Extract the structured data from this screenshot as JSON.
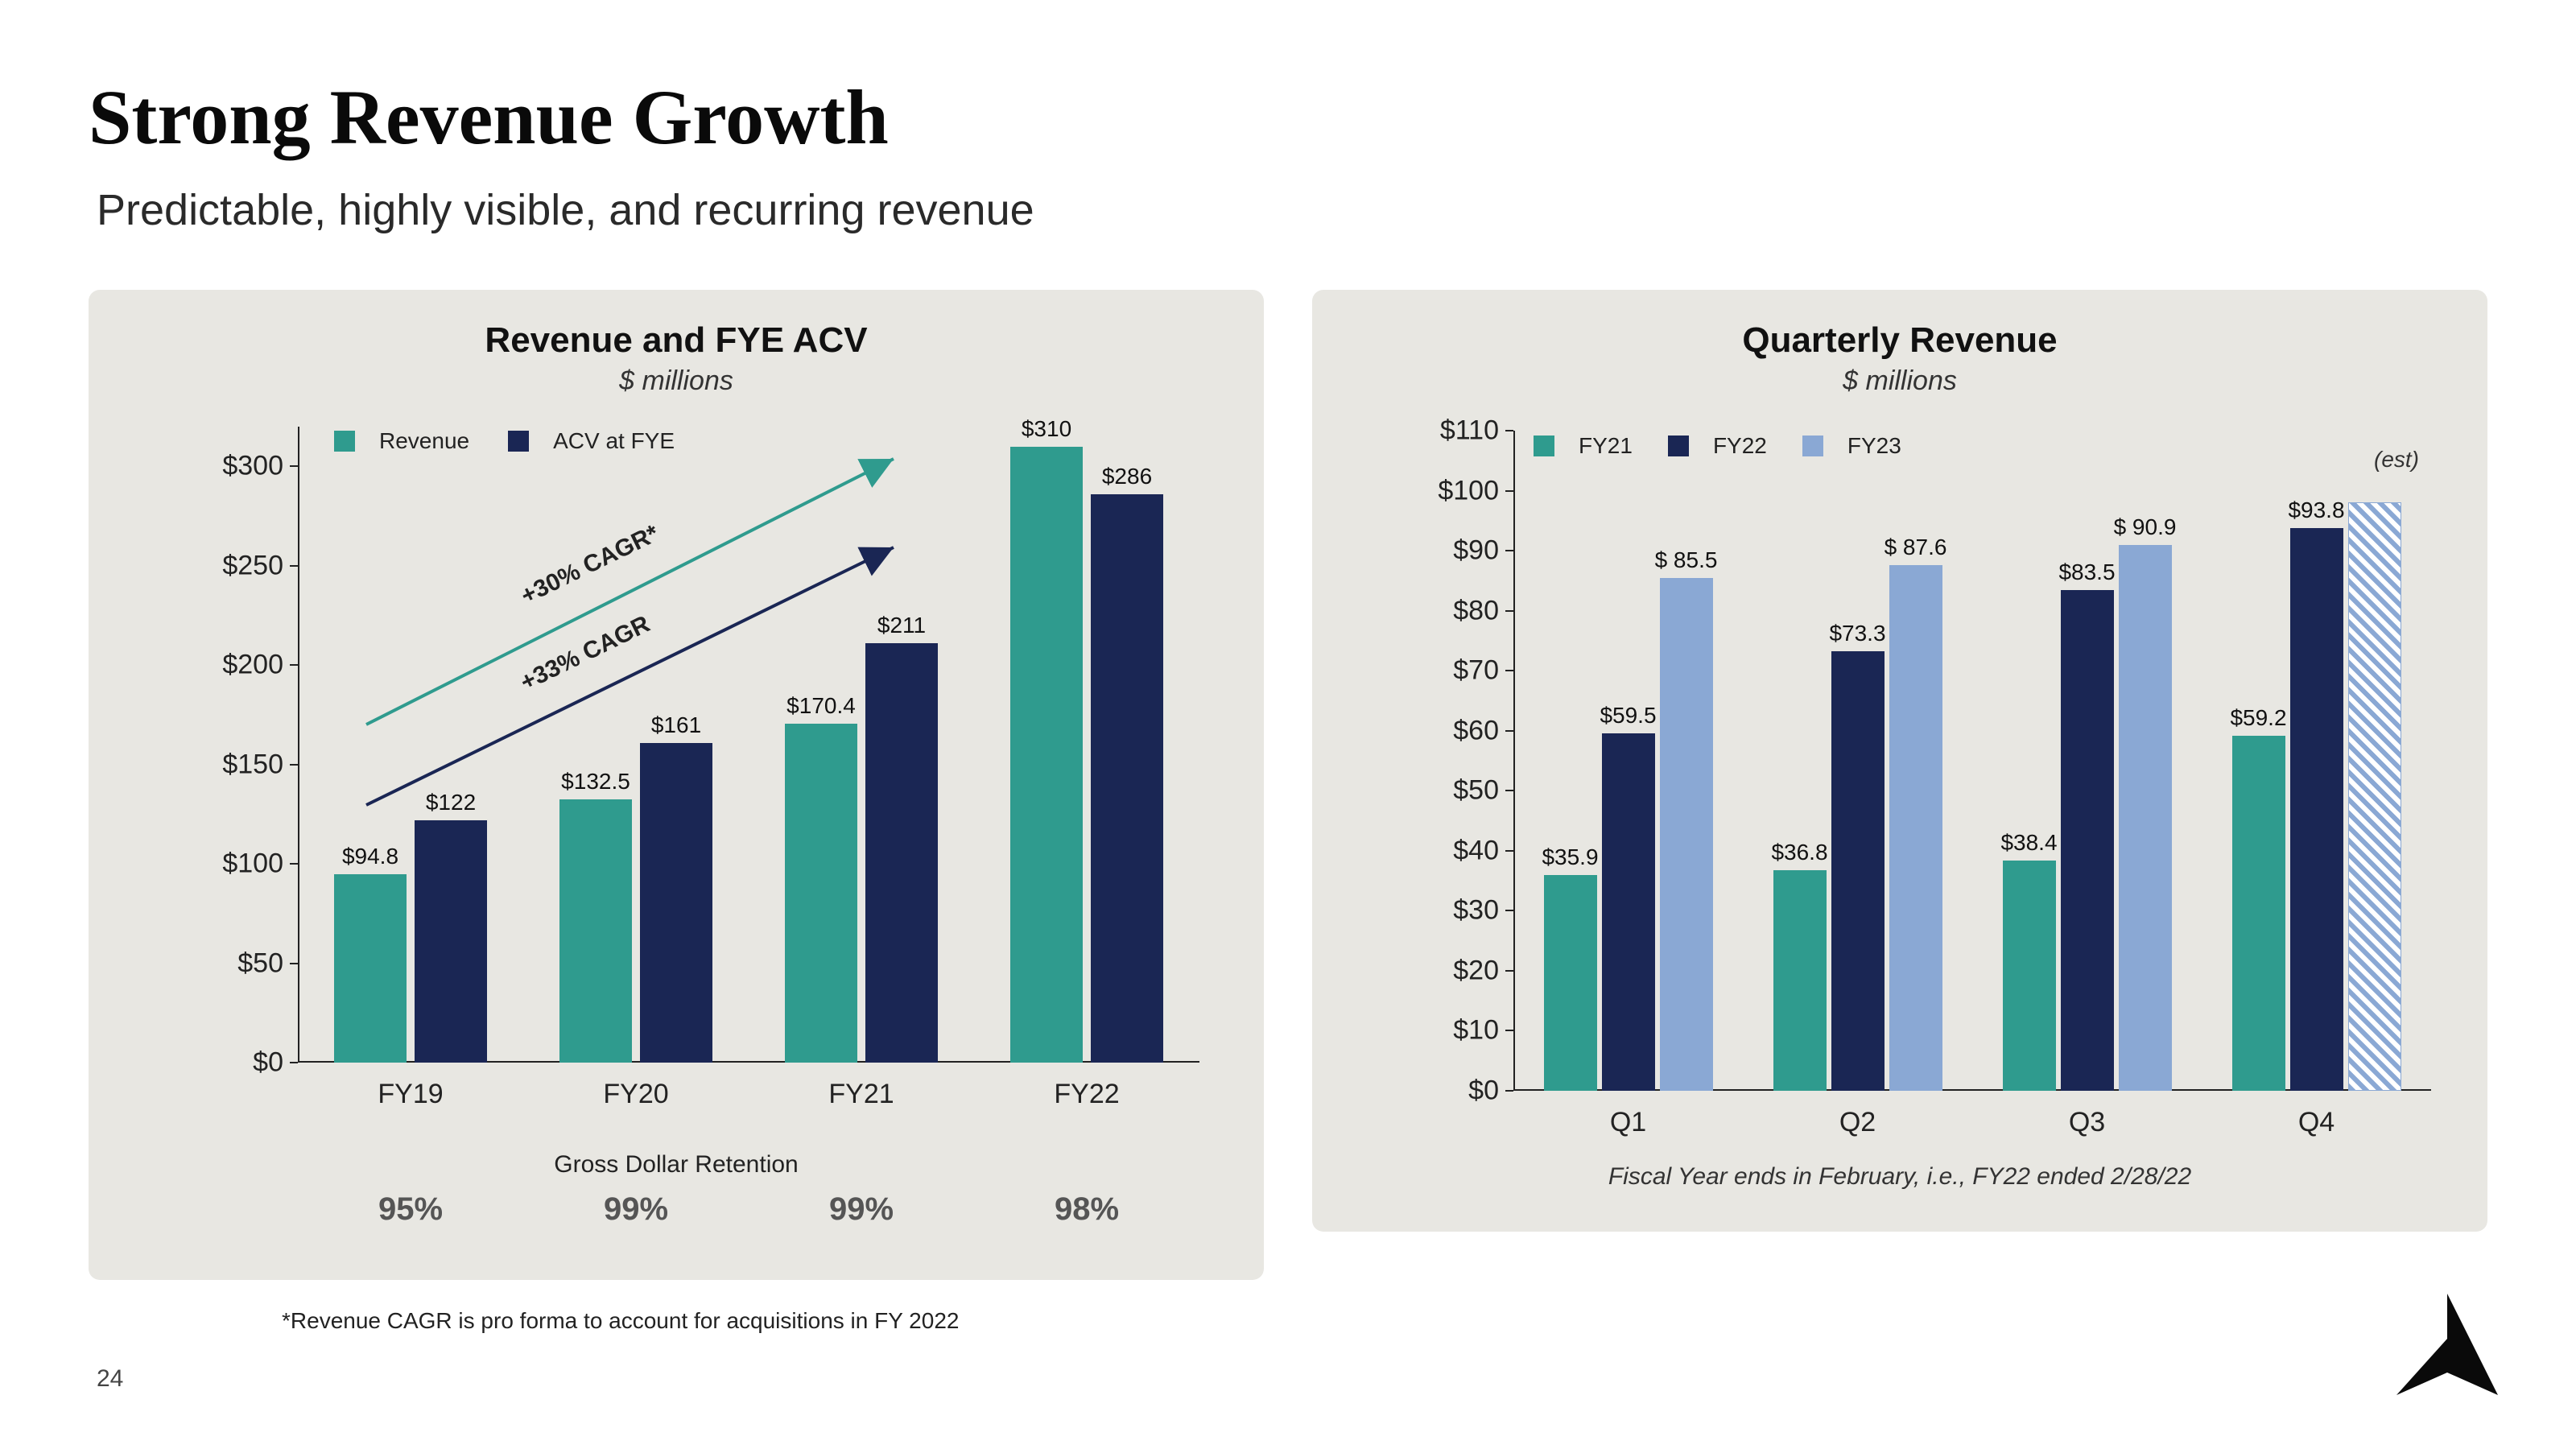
{
  "title": "Strong Revenue Growth",
  "subtitle": "Predictable, highly visible, and recurring revenue",
  "page_number": "24",
  "colors": {
    "teal": "#2f9b8e",
    "navy": "#1a2654",
    "lightblue": "#8aa8d4",
    "panel_bg": "#e8e7e2",
    "text": "#111111"
  },
  "left_chart": {
    "title": "Revenue and FYE ACV",
    "subtitle": "$ millions",
    "type": "grouped-bar",
    "legend": [
      {
        "label": "Revenue",
        "color": "#2f9b8e"
      },
      {
        "label": "ACV at FYE",
        "color": "#1a2654"
      }
    ],
    "categories": [
      "FY19",
      "FY20",
      "FY21",
      "FY22"
    ],
    "y_ticks": [
      "$0",
      "$50",
      "$100",
      "$150",
      "$200",
      "$250",
      "$300"
    ],
    "y_max": 320,
    "series": [
      {
        "name": "Revenue",
        "color": "#2f9b8e",
        "values": [
          94.8,
          132.5,
          170.4,
          310
        ],
        "labels": [
          "$94.8",
          "$132.5",
          "$170.4",
          "$310"
        ]
      },
      {
        "name": "ACV at FYE",
        "color": "#1a2654",
        "values": [
          122,
          161,
          211,
          286
        ],
        "labels": [
          "$122",
          "$161",
          "$211",
          "$286"
        ]
      }
    ],
    "cagr_arrows": [
      {
        "label": "+30% CAGR*",
        "color": "#2f9b8e"
      },
      {
        "label": "+33% CAGR",
        "color": "#1a2654"
      }
    ],
    "retention": {
      "title": "Gross Dollar Retention",
      "values": [
        "95%",
        "99%",
        "99%",
        "98%"
      ]
    },
    "footnote": "*Revenue  CAGR is pro forma to account for acquisitions in FY 2022"
  },
  "right_chart": {
    "title": "Quarterly Revenue",
    "subtitle": "$ millions",
    "type": "grouped-bar",
    "legend": [
      {
        "label": "FY21",
        "color": "#2f9b8e"
      },
      {
        "label": "FY22",
        "color": "#1a2654"
      },
      {
        "label": "FY23",
        "color": "#8aa8d4"
      }
    ],
    "categories": [
      "Q1",
      "Q2",
      "Q3",
      "Q4"
    ],
    "y_ticks": [
      "$0",
      "$10",
      "$20",
      "$30",
      "$40",
      "$50",
      "$60",
      "$70",
      "$80",
      "$90",
      "$100",
      "$110"
    ],
    "y_max": 110,
    "series": [
      {
        "name": "FY21",
        "color": "#2f9b8e",
        "values": [
          35.9,
          36.8,
          38.4,
          59.2
        ],
        "labels": [
          "$35.9",
          "$36.8",
          "$38.4",
          "$59.2"
        ]
      },
      {
        "name": "FY22",
        "color": "#1a2654",
        "values": [
          59.5,
          73.3,
          83.5,
          93.8
        ],
        "labels": [
          "$59.5",
          "$73.3",
          "$83.5",
          "$93.8"
        ]
      },
      {
        "name": "FY23",
        "color": "#8aa8d4",
        "values": [
          85.5,
          87.6,
          90.9,
          98
        ],
        "labels": [
          "$ 85.5",
          "$ 87.6",
          "$ 90.9",
          ""
        ],
        "hatched": [
          false,
          false,
          false,
          true
        ]
      }
    ],
    "est_label": "(est)",
    "footnote": "Fiscal Year ends in February, i.e., FY22 ended 2/28/22"
  }
}
